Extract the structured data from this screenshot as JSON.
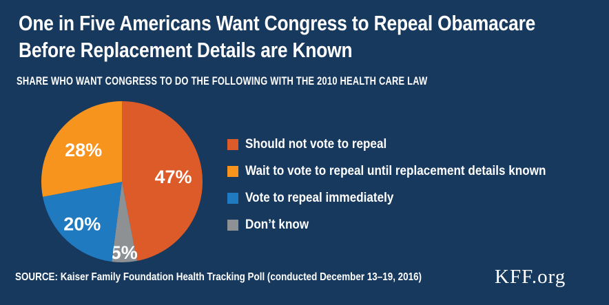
{
  "header": {
    "title_line1": "One in Five Americans Want Congress to Repeal Obamacare",
    "title_line2": "Before Replacement Details are Known",
    "subtitle": "SHARE WHO WANT CONGRESS TO DO THE FOLLOWING WITH THE 2010 HEALTH CARE LAW"
  },
  "chart_data": {
    "type": "pie",
    "title": "One in Five Americans Want Congress to Repeal Obamacare Before Replacement Details are Known",
    "subtitle": "SHARE WHO WANT CONGRESS TO DO THE FOLLOWING WITH THE 2010 HEALTH CARE LAW",
    "slices": [
      {
        "label": "Should not vote to repeal",
        "value": 47,
        "color": "#DC5B28"
      },
      {
        "label": "Wait to vote to repeal until replacement details known",
        "value": 28,
        "color": "#F7941E"
      },
      {
        "label": "Vote to repeal immediately",
        "value": 20,
        "color": "#1F7AC0"
      },
      {
        "label": "Don’t know",
        "value": 5,
        "color": "#8E9194"
      }
    ],
    "draw_order": [
      0,
      3,
      2,
      1
    ],
    "start_angle": "top",
    "direction": "clockwise",
    "value_label_format": "{value}%",
    "legend_position": "right"
  },
  "footer": {
    "source": "SOURCE: Kaiser Family Foundation Health Tracking Poll (conducted December 13–19, 2016)",
    "brand": "KFF.org"
  },
  "colors": {
    "background": "#17395E",
    "text": "#FFFFFF"
  }
}
